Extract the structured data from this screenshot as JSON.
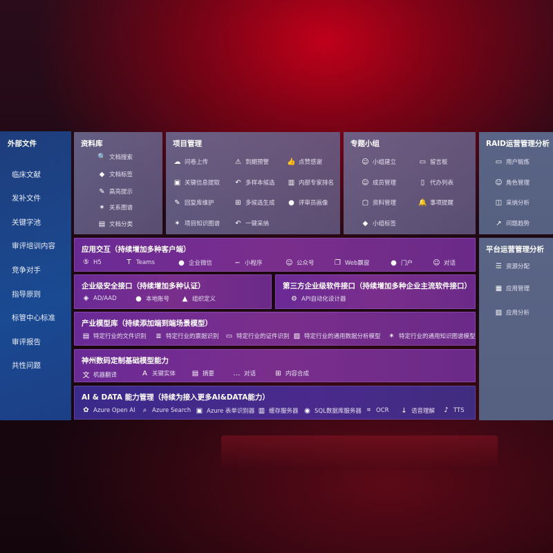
{
  "sidebar": {
    "title": "外部文件",
    "items": [
      "临床文献",
      "发补文件",
      "关键字池",
      "审评培训内容",
      "竞争对手",
      "指导原则",
      "标管中心标准",
      "审评报告",
      "共性问题"
    ]
  },
  "panels": {
    "library": {
      "title": "资料库",
      "items": [
        {
          "label": "文档搜索",
          "icon": "doc-search-icon"
        },
        {
          "label": "文档标签",
          "icon": "tag-icon"
        },
        {
          "label": "高亮提示",
          "icon": "pen-icon"
        },
        {
          "label": "关系图谱",
          "icon": "graph-icon"
        },
        {
          "label": "文档分类",
          "icon": "doc-category-icon"
        }
      ]
    },
    "project": {
      "title": "项目管理",
      "items": [
        {
          "label": "问卷上传",
          "icon": "cloud-upload-icon"
        },
        {
          "label": "到期预警",
          "icon": "alarm-icon"
        },
        {
          "label": "点赞感谢",
          "icon": "thumbs-up-icon"
        },
        {
          "label": "关键信息提取",
          "icon": "extract-icon"
        },
        {
          "label": "多样本候选",
          "icon": "reply-icon"
        },
        {
          "label": "内部专家排名",
          "icon": "ranking-icon"
        },
        {
          "label": "回复库维护",
          "icon": "edit-icon"
        },
        {
          "label": "多候选生成",
          "icon": "puzzle-icon"
        },
        {
          "label": "评审员画像",
          "icon": "user-icon"
        },
        {
          "label": "项目知识图谱",
          "icon": "graph-icon"
        },
        {
          "label": "一键采纳",
          "icon": "reply-icon"
        }
      ]
    },
    "group": {
      "title": "专题小组",
      "items": [
        {
          "label": "小组建立",
          "icon": "users-icon"
        },
        {
          "label": "留言板",
          "icon": "bbs-icon"
        },
        {
          "label": "成员管理",
          "icon": "user-add-icon"
        },
        {
          "label": "代办列表",
          "icon": "clipboard-icon"
        },
        {
          "label": "资料管理",
          "icon": "folder-icon"
        },
        {
          "label": "事项提醒",
          "icon": "bell-icon"
        },
        {
          "label": "小组标签",
          "icon": "tag-icon"
        }
      ]
    },
    "raid": {
      "title": "RAID运营管理分析",
      "items": [
        {
          "label": "用户锻炼",
          "icon": "id-card-icon"
        },
        {
          "label": "角色管理",
          "icon": "users-icon"
        },
        {
          "label": "采纳分析",
          "icon": "qa-icon"
        },
        {
          "label": "问题趋势",
          "icon": "trend-icon"
        }
      ]
    },
    "platform": {
      "title": "平台运营管理分析",
      "items": [
        {
          "label": "资源分配",
          "icon": "checklist-icon"
        },
        {
          "label": "应用管理",
          "icon": "apps-icon"
        },
        {
          "label": "应用分析",
          "icon": "chart-icon"
        }
      ]
    },
    "interaction": {
      "title": "应用交互（持续增加多种客户端）",
      "items": [
        {
          "label": "H5",
          "icon": "html5-icon"
        },
        {
          "label": "Teams",
          "icon": "teams-icon"
        },
        {
          "label": "企业微信",
          "icon": "wecom-icon"
        },
        {
          "label": "小程序",
          "icon": "miniprogram-icon"
        },
        {
          "label": "公众号",
          "icon": "users-icon"
        },
        {
          "label": "Web飘窗",
          "icon": "window-icon"
        },
        {
          "label": "门户",
          "icon": "portal-icon"
        },
        {
          "label": "对话",
          "icon": "chat-users-icon"
        }
      ]
    },
    "security": {
      "title": "企业级安全接口（持续增加多种认证）",
      "items": [
        {
          "label": "AD/AAD",
          "icon": "ad-icon"
        },
        {
          "label": "本地账号",
          "icon": "user-lock-icon"
        },
        {
          "label": "组织定义",
          "icon": "org-icon"
        }
      ]
    },
    "thirdparty": {
      "title": "第三方企业级软件接口（持续增加多种企业主流软件接口）",
      "items": [
        {
          "label": "API自动化设计器",
          "icon": "gear-icon"
        }
      ]
    },
    "industry": {
      "title": "产业模型库（持续添加端到端场景模型）",
      "items": [
        {
          "label": "特定行业的文件识别",
          "icon": "file-icon"
        },
        {
          "label": "特定行业的票据识别",
          "icon": "receipt-icon"
        },
        {
          "label": "特定行业的证件识别",
          "icon": "id-card-icon"
        },
        {
          "label": "特定行业的通用数据分析模型",
          "icon": "image-chart-icon"
        },
        {
          "label": "特定行业的通用知识图谱模型",
          "icon": "graph-icon"
        }
      ]
    },
    "base": {
      "title": "神州数码定制基础模型能力",
      "items": [
        {
          "label": "机器翻译",
          "icon": "translate-icon"
        },
        {
          "label": "关键实体",
          "icon": "entity-icon"
        },
        {
          "label": "摘要",
          "icon": "doc-icon"
        },
        {
          "label": "对话",
          "icon": "chat-icon"
        },
        {
          "label": "内容合成",
          "icon": "puzzle-icon"
        }
      ]
    },
    "aidata": {
      "title": "AI & DATA 能力管理（持续为接入更多AI&DATA能力）",
      "items": [
        {
          "label": "Azure Open AI",
          "icon": "openai-icon"
        },
        {
          "label": "Azure Search",
          "icon": "search-icon"
        },
        {
          "label": "Azure 表单识别器",
          "icon": "form-icon"
        },
        {
          "label": "缓存服务器",
          "icon": "cache-icon"
        },
        {
          "label": "SQL数据库服务器",
          "icon": "database-icon"
        },
        {
          "label": "OCR",
          "icon": "ocr-icon"
        },
        {
          "label": "语音理解",
          "icon": "speech-icon"
        },
        {
          "label": "TTS",
          "icon": "tts-icon"
        }
      ]
    }
  }
}
